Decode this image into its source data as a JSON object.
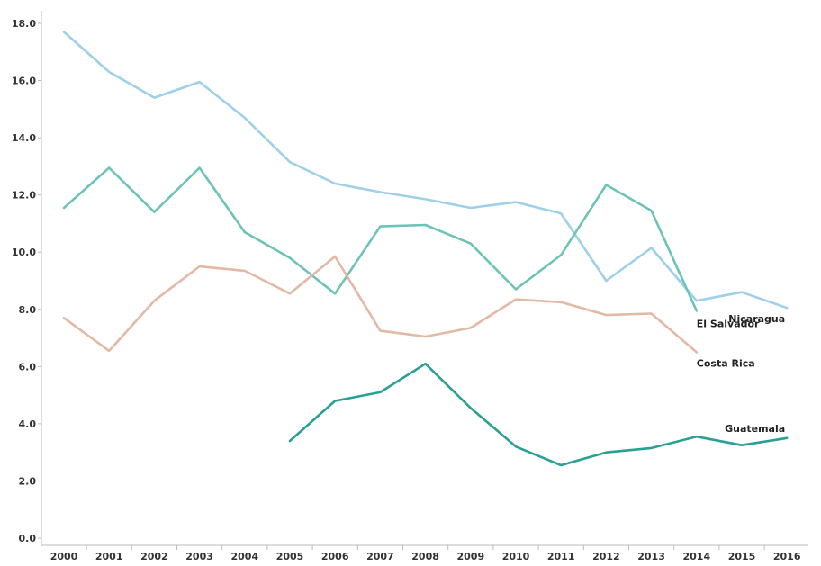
{
  "chart_data": {
    "type": "line",
    "x": [
      "2000",
      "2001",
      "2002",
      "2003",
      "2004",
      "2005",
      "2006",
      "2007",
      "2008",
      "2009",
      "2010",
      "2011",
      "2012",
      "2013",
      "2014",
      "2015",
      "2016"
    ],
    "y_ticks": [
      "0.0",
      "2.0",
      "4.0",
      "6.0",
      "8.0",
      "10.0",
      "12.0",
      "14.0",
      "16.0",
      "18.0"
    ],
    "ylim": [
      0,
      18
    ],
    "grid": false,
    "legend": "none (direct labels at line ends)",
    "series": [
      {
        "name": "Nicaragua",
        "color": "#9fd0ea",
        "values": [
          17.7,
          16.3,
          15.4,
          15.95,
          14.7,
          13.15,
          12.4,
          12.1,
          11.85,
          11.55,
          11.75,
          11.35,
          9.0,
          10.15,
          8.3,
          8.6,
          8.05
        ]
      },
      {
        "name": "El Salvador",
        "color": "#6cc3b6",
        "values": [
          11.55,
          12.95,
          11.4,
          12.95,
          10.7,
          9.8,
          8.55,
          10.9,
          10.95,
          10.3,
          8.7,
          9.9,
          12.35,
          11.45,
          7.95,
          null,
          null
        ]
      },
      {
        "name": "Costa Rica",
        "color": "#e3b8a5",
        "values": [
          7.7,
          6.55,
          8.3,
          9.5,
          9.35,
          8.55,
          9.85,
          7.25,
          7.05,
          7.35,
          8.35,
          8.25,
          7.8,
          7.85,
          6.5,
          null,
          null
        ]
      },
      {
        "name": "Guatemala",
        "color": "#2aa094",
        "values": [
          null,
          null,
          null,
          null,
          null,
          3.4,
          4.8,
          5.1,
          6.1,
          4.55,
          3.2,
          2.55,
          3.0,
          3.15,
          3.55,
          3.25,
          3.5
        ]
      }
    ]
  }
}
